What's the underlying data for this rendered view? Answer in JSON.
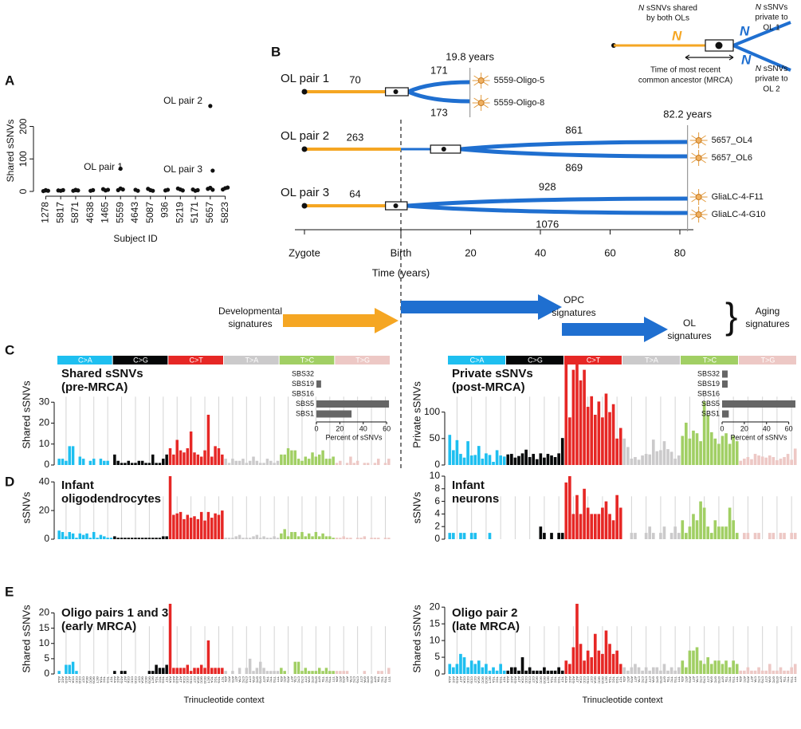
{
  "panel_labels": [
    "A",
    "B",
    "C",
    "D",
    "E"
  ],
  "chart_data": [
    {
      "type": "scatter",
      "ylabel": "Shared sSNVs",
      "xlabel": "Subject ID",
      "categories": [
        "1278",
        "5817",
        "5871",
        "4638",
        "1465",
        "5559",
        "4643",
        "5087",
        "936",
        "5219",
        "5171",
        "5657",
        "5823"
      ],
      "x": [
        "1278",
        "1278",
        "1278",
        "1278",
        "5817",
        "5817",
        "5817",
        "5871",
        "5871",
        "5871",
        "5871",
        "4638",
        "4638",
        "1465",
        "1465",
        "1465",
        "5559",
        "5559",
        "5559",
        "5559",
        "4643",
        "4643",
        "5087",
        "5087",
        "5087",
        "936",
        "936",
        "5219",
        "5219",
        "5219",
        "5171",
        "5171",
        "5171",
        "5657",
        "5657",
        "5657",
        "5657",
        "5657",
        "5823",
        "5823",
        "5823"
      ],
      "values": [
        3,
        2,
        1,
        4,
        2,
        4,
        3,
        4,
        3,
        2,
        5,
        2,
        4,
        3,
        5,
        7,
        70,
        6,
        4,
        9,
        5,
        2,
        4,
        2,
        8,
        3,
        5,
        6,
        3,
        9,
        2,
        4,
        6,
        263,
        64,
        8,
        11,
        5,
        10,
        12,
        6
      ],
      "annotations": [
        "OL pair 1",
        "OL pair 2",
        "OL pair 3"
      ],
      "ylim": [
        0,
        275
      ],
      "yticks": [
        0,
        100,
        200
      ],
      "color": "#111111"
    },
    {
      "type": "spectrum",
      "title": [
        "Shared sSNVs",
        "(pre-MRCA)"
      ],
      "ylabel": "Shared sSNVs",
      "classes": [
        "C>A",
        "C>G",
        "C>T",
        "T>A",
        "T>C",
        "T>G"
      ],
      "class_colors": [
        "#1ebff0",
        "#050708",
        "#e62725",
        "#cbcacb",
        "#a1cf64",
        "#edc8c5"
      ],
      "ylim": [
        0,
        48
      ],
      "yticks": [
        0,
        10,
        20,
        30
      ],
      "values": [
        3,
        3,
        2,
        9,
        9,
        0,
        4,
        3,
        0,
        2,
        3,
        0,
        3,
        2,
        2,
        0,
        5,
        2,
        1,
        1,
        2,
        1,
        1,
        2,
        2,
        1,
        1,
        5,
        1,
        1,
        3,
        5,
        8,
        5,
        12,
        7,
        6,
        8,
        16,
        6,
        5,
        4,
        7,
        24,
        4,
        9,
        8,
        5,
        3,
        1,
        3,
        2,
        2,
        3,
        1,
        2,
        4,
        2,
        1,
        1,
        3,
        2,
        1,
        2,
        5,
        5,
        8,
        7,
        7,
        3,
        2,
        4,
        3,
        6,
        4,
        5,
        7,
        3,
        3,
        4,
        1,
        2,
        0,
        1,
        4,
        1,
        2,
        0,
        1,
        1,
        0,
        1,
        3,
        0,
        1,
        3
      ],
      "inset": {
        "categories": [
          "SBS32",
          "SBS19",
          "SBS16",
          "SBS5",
          "SBS1"
        ],
        "values": [
          0,
          4,
          0,
          62,
          30
        ],
        "xlim": [
          0,
          64
        ],
        "xticks": [
          0,
          20,
          40,
          60
        ],
        "xlabel": "Percent of sSNVs",
        "color": "#666666"
      }
    },
    {
      "type": "spectrum",
      "title": [
        "Private sSNVs",
        "(post-MRCA)"
      ],
      "ylabel": "Private sSNVs",
      "classes": [
        "C>A",
        "C>G",
        "C>T",
        "T>A",
        "T>C",
        "T>G"
      ],
      "class_colors": [
        "#1ebff0",
        "#050708",
        "#e62725",
        "#cbcacb",
        "#a1cf64",
        "#edc8c5"
      ],
      "ylim": [
        0,
        190
      ],
      "yticks": [
        0,
        50,
        100
      ],
      "values": [
        57,
        28,
        47,
        21,
        14,
        45,
        18,
        19,
        36,
        12,
        22,
        19,
        6,
        28,
        18,
        16,
        20,
        21,
        14,
        17,
        22,
        29,
        15,
        21,
        11,
        22,
        14,
        21,
        18,
        15,
        22,
        51,
        190,
        90,
        180,
        190,
        160,
        180,
        110,
        130,
        95,
        120,
        90,
        135,
        100,
        115,
        50,
        70,
        50,
        34,
        12,
        15,
        10,
        18,
        21,
        20,
        48,
        26,
        28,
        45,
        30,
        25,
        12,
        18,
        55,
        80,
        50,
        65,
        60,
        45,
        120,
        95,
        62,
        50,
        40,
        55,
        60,
        40,
        55,
        45,
        8,
        12,
        15,
        11,
        21,
        18,
        16,
        14,
        18,
        15,
        9,
        12,
        15,
        21,
        10,
        31
      ],
      "inset": {
        "categories": [
          "SBS32",
          "SBS19",
          "SBS16",
          "SBS5",
          "SBS1"
        ],
        "values": [
          5,
          5,
          0,
          66,
          6
        ],
        "xlim": [
          0,
          66
        ],
        "xticks": [
          0,
          20,
          40,
          60
        ],
        "xlabel": "Percent of sSNVs",
        "color": "#666666"
      }
    },
    {
      "type": "spectrum",
      "title": [
        "Infant",
        "oligodendrocytes"
      ],
      "ylabel": "sSNVs",
      "class_colors": [
        "#1ebff0",
        "#050708",
        "#e62725",
        "#cbcacb",
        "#a1cf64",
        "#edc8c5"
      ],
      "ylim": [
        0,
        44
      ],
      "yticks": [
        0,
        20,
        40
      ],
      "values": [
        6,
        5,
        2,
        5,
        4,
        1,
        4,
        3,
        4,
        1,
        5,
        1,
        3,
        2,
        1,
        1,
        2,
        1,
        1,
        1,
        1,
        1,
        1,
        1,
        1,
        1,
        1,
        1,
        1,
        1,
        2,
        2,
        44,
        17,
        18,
        19,
        14,
        17,
        15,
        16,
        14,
        19,
        13,
        19,
        15,
        18,
        17,
        20,
        1,
        1,
        1,
        2,
        3,
        1,
        1,
        1,
        2,
        3,
        1,
        2,
        1,
        1,
        2,
        1,
        4,
        7,
        2,
        5,
        5,
        2,
        5,
        2,
        4,
        2,
        5,
        2,
        4,
        2,
        2,
        1,
        1,
        1,
        2,
        1,
        1,
        0,
        1,
        1,
        2,
        0,
        1,
        1,
        1,
        0,
        1,
        1
      ]
    },
    {
      "type": "spectrum",
      "title": [
        "Infant",
        "neurons"
      ],
      "ylabel": "sSNVs",
      "class_colors": [
        "#1ebff0",
        "#050708",
        "#e62725",
        "#cbcacb",
        "#a1cf64",
        "#edc8c5"
      ],
      "ylim": [
        0,
        10
      ],
      "yticks": [
        0,
        2,
        4,
        6,
        8,
        10
      ],
      "values": [
        1,
        1,
        0,
        1,
        1,
        0,
        1,
        1,
        0,
        0,
        0,
        1,
        0,
        0,
        0,
        0,
        0,
        0,
        0,
        0,
        0,
        0,
        0,
        0,
        0,
        2,
        1,
        0,
        1,
        0,
        1,
        1,
        9,
        10,
        4,
        7,
        4,
        8,
        5,
        4,
        4,
        4,
        5,
        6,
        4,
        3,
        7,
        5,
        0,
        0,
        1,
        1,
        0,
        0,
        1,
        2,
        1,
        0,
        1,
        2,
        0,
        1,
        2,
        1,
        3,
        1,
        2,
        4,
        3,
        6,
        5,
        2,
        1,
        3,
        2,
        2,
        2,
        5,
        3,
        1,
        0,
        1,
        1,
        0,
        1,
        1,
        0,
        0,
        1,
        1,
        0,
        1,
        1,
        0,
        1,
        1
      ]
    },
    {
      "type": "spectrum",
      "title": [
        "Oligo pairs 1 and 3",
        "(early MRCA)"
      ],
      "ylabel": "Shared sSNVs",
      "xlabel": "Trinucleotide context",
      "class_colors": [
        "#1ebff0",
        "#050708",
        "#e62725",
        "#cbcacb",
        "#a1cf64",
        "#edc8c5"
      ],
      "ylim": [
        0,
        23
      ],
      "yticks": [
        0,
        5,
        10,
        15,
        20
      ],
      "categories": [
        "ACA",
        "ACC",
        "ACG",
        "ACT",
        "CCA",
        "CCC",
        "CCG",
        "CCT",
        "GCA",
        "GCC",
        "GCG",
        "GCT",
        "TCA",
        "TCC",
        "TCG",
        "TCT",
        "ACA",
        "ACC",
        "ACG",
        "ACT",
        "CCA",
        "CCC",
        "CCG",
        "CCT",
        "GCA",
        "GCC",
        "GCG",
        "GCT",
        "TCA",
        "TCC",
        "TCG",
        "TCT",
        "ACA",
        "ACC",
        "ACG",
        "ACT",
        "CCA",
        "CCC",
        "CCG",
        "CCT",
        "GCA",
        "GCC",
        "GCG",
        "GCT",
        "TCA",
        "TCC",
        "TCG",
        "TCT",
        "ATA",
        "ATC",
        "ATG",
        "ATT",
        "CTA",
        "CTC",
        "CTG",
        "CTT",
        "GTA",
        "GTC",
        "GTG",
        "GTT",
        "TTA",
        "TTC",
        "TTG",
        "TTT",
        "ATA",
        "ATC",
        "ATG",
        "ATT",
        "CTA",
        "CTC",
        "CTG",
        "CTT",
        "GTA",
        "GTC",
        "GTG",
        "GTT",
        "TTA",
        "TTC",
        "TTG",
        "TTT",
        "ATA",
        "ATC",
        "ATG",
        "ATT",
        "CTA",
        "CTC",
        "CTG",
        "CTT",
        "GTA",
        "GTC",
        "GTG",
        "GTT",
        "TTA",
        "TTC",
        "TTG",
        "TTT"
      ],
      "values": [
        1,
        0,
        3,
        3,
        4,
        1,
        0,
        0,
        0,
        0,
        0,
        0,
        0,
        0,
        0,
        0,
        1,
        0,
        1,
        1,
        0,
        0,
        0,
        0,
        0,
        0,
        1,
        1,
        3,
        2,
        2,
        3,
        23,
        2,
        2,
        2,
        2,
        3,
        1,
        2,
        2,
        3,
        2,
        11,
        2,
        2,
        2,
        2,
        1,
        0,
        1,
        0,
        2,
        0,
        2,
        5,
        1,
        2,
        4,
        2,
        1,
        1,
        1,
        1,
        2,
        1,
        0,
        0,
        4,
        4,
        1,
        2,
        1,
        1,
        1,
        2,
        1,
        2,
        1,
        1,
        1,
        1,
        1,
        1,
        0,
        0,
        0,
        0,
        1,
        0,
        0,
        0,
        1,
        1,
        0,
        2
      ]
    },
    {
      "type": "spectrum",
      "title": [
        "Oligo pair 2",
        "(late MRCA)"
      ],
      "ylabel": "Shared sSNVs",
      "xlabel": "Trinucleotide context",
      "class_colors": [
        "#1ebff0",
        "#050708",
        "#e62725",
        "#cbcacb",
        "#a1cf64",
        "#edc8c5"
      ],
      "ylim": [
        0,
        21
      ],
      "yticks": [
        0,
        5,
        10,
        15,
        20
      ],
      "categories": [
        "ACA",
        "ACC",
        "ACG",
        "ACT",
        "CCA",
        "CCC",
        "CCG",
        "CCT",
        "GCA",
        "GCC",
        "GCG",
        "GCT",
        "TCA",
        "TCC",
        "TCG",
        "TCT",
        "ACA",
        "ACC",
        "ACG",
        "ACT",
        "CCA",
        "CCC",
        "CCG",
        "CCT",
        "GCA",
        "GCC",
        "GCG",
        "GCT",
        "TCA",
        "TCC",
        "TCG",
        "TCT",
        "ACA",
        "ACC",
        "ACG",
        "ACT",
        "CCA",
        "CCC",
        "CCG",
        "CCT",
        "GCA",
        "GCC",
        "GCG",
        "GCT",
        "TCA",
        "TCC",
        "TCG",
        "TCT",
        "ATA",
        "ATC",
        "ATG",
        "ATT",
        "CTA",
        "CTC",
        "CTG",
        "CTT",
        "GTA",
        "GTC",
        "GTG",
        "GTT",
        "TTA",
        "TTC",
        "TTG",
        "TTT",
        "ATA",
        "ATC",
        "ATG",
        "ATT",
        "CTA",
        "CTC",
        "CTG",
        "CTT",
        "GTA",
        "GTC",
        "GTG",
        "GTT",
        "TTA",
        "TTC",
        "TTG",
        "TTT",
        "ATA",
        "ATC",
        "ATG",
        "ATT",
        "CTA",
        "CTC",
        "CTG",
        "CTT",
        "GTA",
        "GTC",
        "GTG",
        "GTT",
        "TTA",
        "TTC",
        "TTG",
        "TTT"
      ],
      "values": [
        3,
        2,
        3,
        6,
        5,
        2,
        4,
        3,
        4,
        2,
        3,
        1,
        2,
        1,
        3,
        1,
        1,
        2,
        2,
        1,
        5,
        1,
        2,
        1,
        1,
        1,
        2,
        1,
        1,
        1,
        2,
        1,
        4,
        3,
        8,
        21,
        9,
        4,
        7,
        5,
        12,
        7,
        6,
        13,
        9,
        6,
        7,
        3,
        2,
        1,
        2,
        3,
        2,
        1,
        2,
        1,
        2,
        2,
        1,
        3,
        1,
        2,
        1,
        2,
        4,
        2,
        7,
        7,
        8,
        4,
        3,
        5,
        3,
        4,
        4,
        3,
        4,
        2,
        4,
        3,
        1,
        1,
        2,
        1,
        1,
        2,
        1,
        1,
        3,
        1,
        1,
        2,
        1,
        1,
        2,
        3
      ]
    }
  ],
  "timeline": {
    "xlabel": "Time (years)",
    "ticks": [
      {
        "value": -0.75,
        "label": "Zygote"
      },
      {
        "value": 0,
        "label": "Birth"
      },
      20,
      40,
      60,
      80
    ],
    "pairs": [
      {
        "label": "OL pair 1",
        "shared": 70,
        "private": [
          171,
          173
        ],
        "cells": [
          "5559-Oligo-5",
          "5559-Oligo-8"
        ],
        "age": 19.8,
        "age_label": "19.8 years",
        "mrca": -0.04,
        "mrca_ci": [
          -0.12,
          2.1
        ]
      },
      {
        "label": "OL pair 2",
        "shared": 263,
        "private": [
          861,
          869
        ],
        "cells": [
          "5657_OL4",
          "5657_OL6"
        ],
        "age": 82.2,
        "age_label": "82.2 years",
        "mrca": 12.3,
        "mrca_ci": [
          8.5,
          17.1
        ]
      },
      {
        "label": "OL pair 3",
        "shared": 64,
        "private": [
          928,
          1076
        ],
        "cells": [
          "GliaLC-4-F11",
          "GliaLC-4-G10"
        ],
        "age": 82.2,
        "mrca": -0.04,
        "mrca_ci": [
          -0.12,
          1.8
        ]
      }
    ]
  },
  "timeline_legend": {
    "n": "N",
    "shared": [
      " sSNVs shared",
      "by both OLs"
    ],
    "private_1": [
      " sSNVs",
      "private to",
      "OL 1"
    ],
    "private_2": [
      " sSNVs",
      "private to",
      "OL 2"
    ],
    "mrca": [
      "Time of most recent",
      "common ancestor (MRCA)"
    ]
  },
  "signatures": [
    [
      "Developmental",
      "signatures"
    ],
    [
      "OPC",
      "signatures"
    ],
    [
      "OL",
      "signatures"
    ],
    [
      "Aging",
      "signatures"
    ]
  ]
}
